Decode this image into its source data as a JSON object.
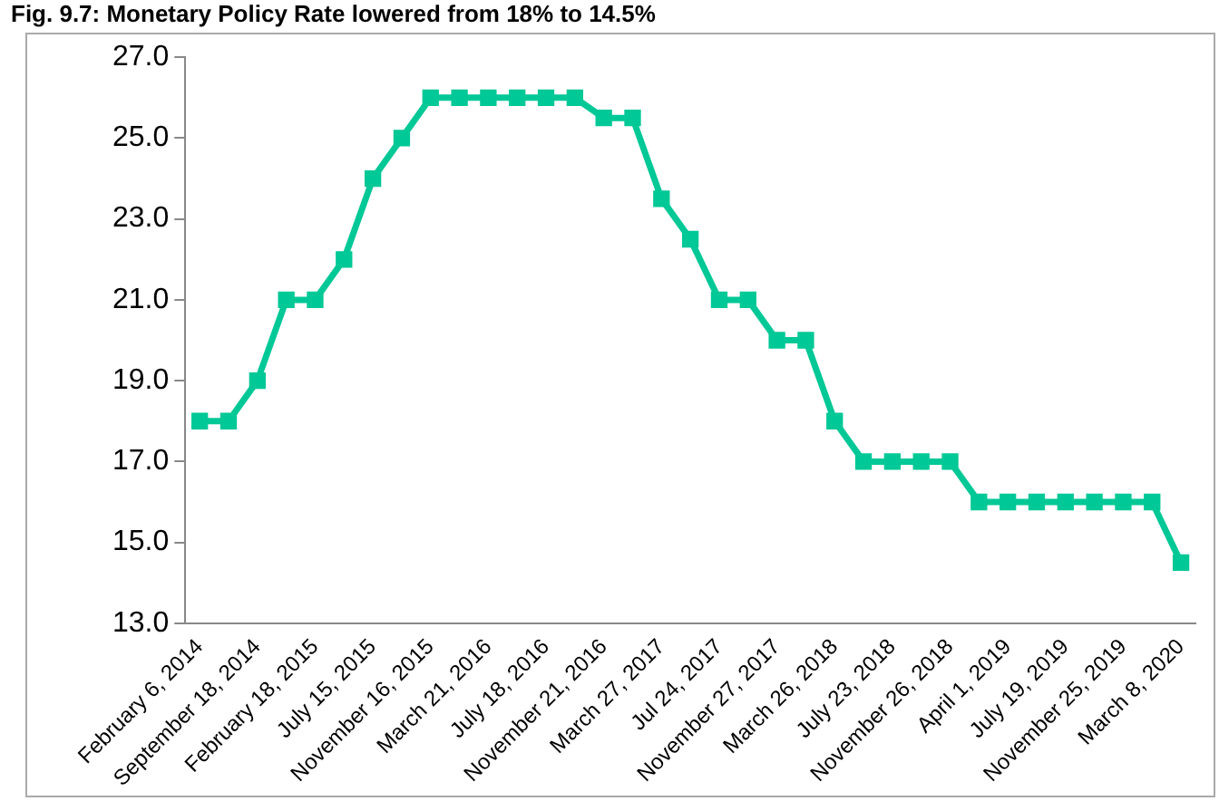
{
  "chart_data": {
    "type": "line",
    "title": "Fig. 9.7: Monetary Policy Rate lowered from 18% to 14.5%",
    "categories": [
      "February 6, 2014",
      null,
      "September 18, 2014",
      null,
      "February 18, 2015",
      null,
      "July 15, 2015",
      null,
      "November 16, 2015",
      null,
      "March 21, 2016",
      null,
      "July 18, 2016",
      null,
      "November 21, 2016",
      null,
      "March 27, 2017",
      null,
      "Jul 24, 2017",
      null,
      "November 27, 2017",
      null,
      "March 26, 2018",
      null,
      "July 23, 2018",
      null,
      "November 26, 2018",
      null,
      "April 1, 2019",
      null,
      "July 19, 2019",
      null,
      "November 25, 2019",
      null,
      "March 8, 2020"
    ],
    "series": [
      {
        "color": "#00c896",
        "values": [
          18,
          18,
          19,
          21,
          21,
          22,
          24,
          25,
          26,
          26,
          26,
          26,
          26,
          26,
          25.5,
          25.5,
          23.5,
          22.5,
          21,
          21,
          20,
          20,
          18,
          17,
          17,
          17,
          17,
          16,
          16,
          16,
          16,
          16,
          16,
          16,
          14.5
        ]
      }
    ],
    "ylim": [
      13,
      27
    ],
    "yticks": [
      {
        "value": 13,
        "label": "13.0"
      },
      {
        "value": 15,
        "label": "15.0"
      },
      {
        "value": 17,
        "label": "17.0"
      },
      {
        "value": 19,
        "label": "19.0"
      },
      {
        "value": 21,
        "label": "21.0"
      },
      {
        "value": 23,
        "label": "23.0"
      },
      {
        "value": 25,
        "label": "25.0"
      },
      {
        "value": 27,
        "label": "27.0"
      }
    ],
    "grid": false,
    "legend": false,
    "marker": "square",
    "line_style": "solid"
  }
}
